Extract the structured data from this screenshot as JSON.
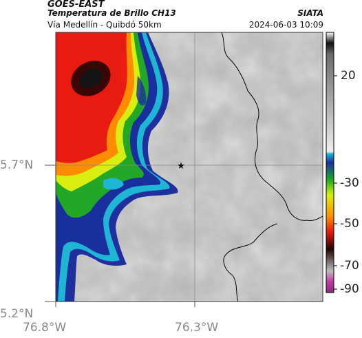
{
  "header": {
    "satellite": "GOES-EAST",
    "product": "Temperatura de Brillo CH13",
    "region": "Vía Medellín - Quibdó 50km",
    "organization": "SIATA",
    "timestamp": "2024-06-03 10:09"
  },
  "map": {
    "lat_ticks": [
      "5.7°N",
      "5.2°N"
    ],
    "lon_ticks": [
      "76.8°W",
      "76.3°W"
    ],
    "marker": "star-marker",
    "grid_color": "#8a8a8a",
    "border_color": "#000000"
  },
  "colorbar": {
    "ticks": [
      "20",
      "-30",
      "-50",
      "-70",
      "-90"
    ],
    "stops": [
      {
        "value": 30,
        "color": "#ffffff"
      },
      {
        "value": 25,
        "color": "#101010"
      },
      {
        "value": 20,
        "color": "#6a6a6a"
      },
      {
        "value": -25,
        "color": "#eeeeee"
      },
      {
        "value": -26,
        "color": "#1fb6d6"
      },
      {
        "value": -30,
        "color": "#1a2f9e"
      },
      {
        "value": -38,
        "color": "#1faa22"
      },
      {
        "value": -45,
        "color": "#d9ef10"
      },
      {
        "value": -55,
        "color": "#ff8c00"
      },
      {
        "value": -62,
        "color": "#e81b10"
      },
      {
        "value": -70,
        "color": "#200404"
      },
      {
        "value": -80,
        "color": "#bdbdbd"
      },
      {
        "value": -85,
        "color": "#c03aa8"
      },
      {
        "value": -90,
        "color": "#8a2b7c"
      }
    ]
  }
}
